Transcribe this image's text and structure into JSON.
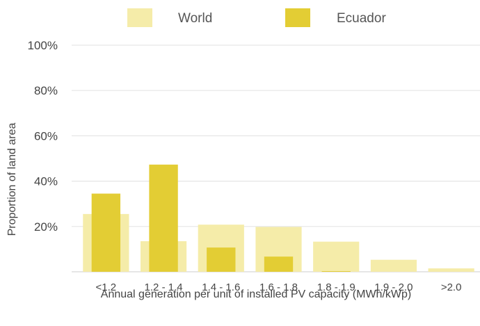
{
  "chart_data": {
    "type": "bar",
    "categories": [
      "<1.2",
      "1.2 - 1.4",
      "1.4 - 1.6",
      "1.6 - 1.8",
      "1.8 - 1.9",
      "1.9 - 2.0",
      ">2.0"
    ],
    "series": [
      {
        "name": "World",
        "values": [
          25.5,
          13.5,
          20.8,
          19.8,
          13.3,
          5.3,
          1.5
        ],
        "color": "#f5eca9"
      },
      {
        "name": "Ecuador",
        "values": [
          34.5,
          47.3,
          10.7,
          6.7,
          0.3,
          0,
          0
        ],
        "color": "#e3cd34"
      }
    ],
    "xlabel": "Annual generation per unit of installed PV capacity (MWh/kWp)",
    "ylabel": "Proportion of land area",
    "ylim": [
      0,
      100
    ],
    "yticks": [
      20,
      40,
      60,
      80,
      100
    ],
    "ytick_labels": [
      "20%",
      "40%",
      "60%",
      "80%",
      "100%"
    ],
    "grid": true,
    "legend_position": "top"
  }
}
